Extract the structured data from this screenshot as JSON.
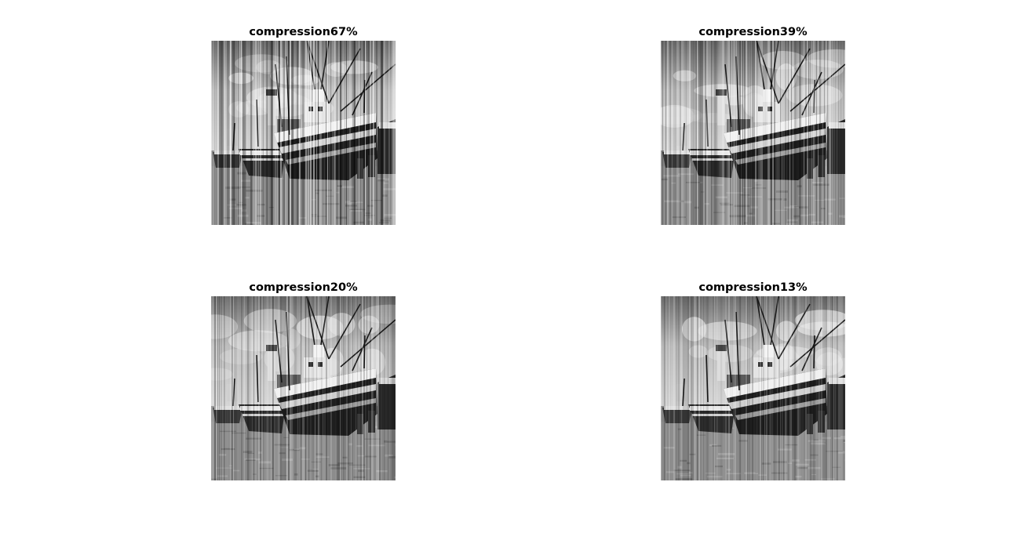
{
  "panels": [
    {
      "title": "compression67%",
      "compression_percent": 67,
      "image": "grayscale-boat-harbor-image"
    },
    {
      "title": "compression39%",
      "compression_percent": 39,
      "image": "grayscale-boat-harbor-image"
    },
    {
      "title": "compression20%",
      "compression_percent": 20,
      "image": "grayscale-boat-harbor-image"
    },
    {
      "title": "compression13%",
      "compression_percent": 13,
      "image": "grayscale-boat-harbor-image"
    }
  ]
}
